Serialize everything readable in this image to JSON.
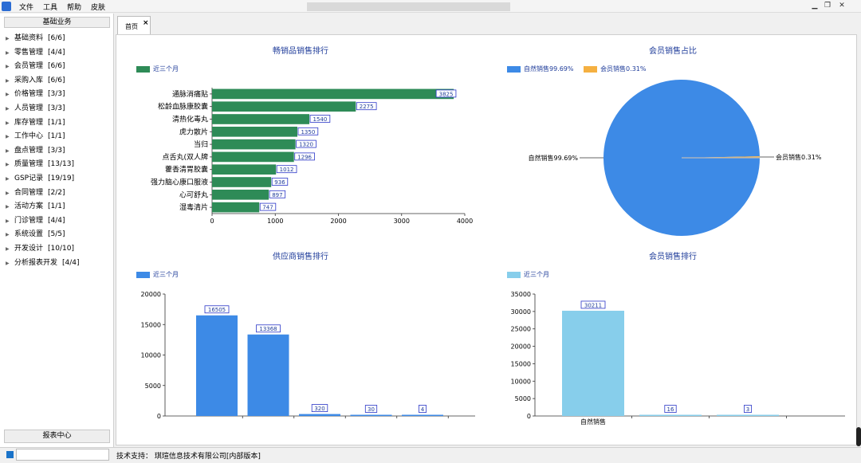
{
  "menubar": {
    "items": [
      "文件",
      "工具",
      "帮助",
      "皮肤"
    ],
    "window_controls": [
      "minimize-icon",
      "restore-icon",
      "close-icon"
    ]
  },
  "sidebar": {
    "header": "基础业务",
    "items": [
      {
        "label": "基础资料",
        "count": "[6/6]"
      },
      {
        "label": "零售管理",
        "count": "[4/4]"
      },
      {
        "label": "会员管理",
        "count": "[6/6]"
      },
      {
        "label": "采购入库",
        "count": "[6/6]"
      },
      {
        "label": "价格管理",
        "count": "[3/3]"
      },
      {
        "label": "人员管理",
        "count": "[3/3]"
      },
      {
        "label": "库存管理",
        "count": "[1/1]"
      },
      {
        "label": "工作中心",
        "count": "[1/1]"
      },
      {
        "label": "盘点管理",
        "count": "[3/3]"
      },
      {
        "label": "质量管理",
        "count": "[13/13]"
      },
      {
        "label": "GSP记录",
        "count": "[19/19]"
      },
      {
        "label": "合同管理",
        "count": "[2/2]"
      },
      {
        "label": "活动方案",
        "count": "[1/1]"
      },
      {
        "label": "门诊管理",
        "count": "[4/4]"
      },
      {
        "label": "系统设置",
        "count": "[5/5]"
      },
      {
        "label": "开发设计",
        "count": "[10/10]"
      },
      {
        "label": "分析报表开发",
        "count": "[4/4]"
      }
    ],
    "footer": "报表中心"
  },
  "tabs": [
    {
      "label": "首页",
      "close": "×"
    }
  ],
  "status": {
    "text": "技术支持：   琪瑄信息技术有限公司[内部版本]"
  },
  "colors": {
    "green": "#2e8b57",
    "blue": "#3d8ae6",
    "orange": "#f5b041",
    "light_blue": "#87ceeb",
    "title": "#1f3c9a"
  },
  "chart_data": [
    {
      "type": "bar",
      "orientation": "horizontal",
      "title": "畅销品销售排行",
      "legend": "近三个月",
      "categories": [
        "通脉消痛贴",
        "松龄血脉康胶囊",
        "清热化毒丸",
        "虎力散片",
        "当归",
        "点舌丸(双人牌",
        "藿香清胃胶囊",
        "强力脑心康口服液",
        "心可舒丸",
        "湿毒清片"
      ],
      "values": [
        3825,
        2275,
        1540,
        1350,
        1320,
        1296,
        1012,
        936,
        897,
        747
      ],
      "labels": [
        "3825",
        "2275",
        "1540",
        "1350",
        "1320",
        "1296",
        "1012",
        "936",
        "897",
        "747"
      ],
      "xlim": [
        0,
        4000
      ],
      "xticks": [
        "0",
        "1000",
        "2000",
        "3000",
        "4000"
      ]
    },
    {
      "type": "pie",
      "title": "会员销售占比",
      "legend": [
        "自然销售99.69%",
        "会员销售0.31%"
      ],
      "slices": [
        {
          "name": "自然销售",
          "value": 99.69,
          "label": "自然销售99.69%"
        },
        {
          "name": "会员销售",
          "value": 0.31,
          "label": "会员销售0.31%"
        }
      ]
    },
    {
      "type": "bar",
      "title": "供应商销售排行",
      "legend": "近三个月",
      "categories": [
        "",
        "",
        "",
        "",
        ""
      ],
      "values": [
        16505,
        13368,
        320,
        30,
        4
      ],
      "labels": [
        "16505",
        "13368",
        "320",
        "30",
        "4"
      ],
      "ylim": [
        0,
        20000
      ],
      "yticks": [
        "0",
        "5000",
        "10000",
        "15000",
        "20000"
      ]
    },
    {
      "type": "bar",
      "title": "会员销售排行",
      "legend": "近三个月",
      "categories": [
        "自然销售",
        "",
        ""
      ],
      "values": [
        30211,
        16,
        3
      ],
      "labels": [
        "30211",
        "16",
        "3"
      ],
      "ylim": [
        0,
        35000
      ],
      "yticks": [
        "0",
        "5000",
        "10000",
        "15000",
        "20000",
        "25000",
        "30000",
        "35000"
      ]
    }
  ]
}
